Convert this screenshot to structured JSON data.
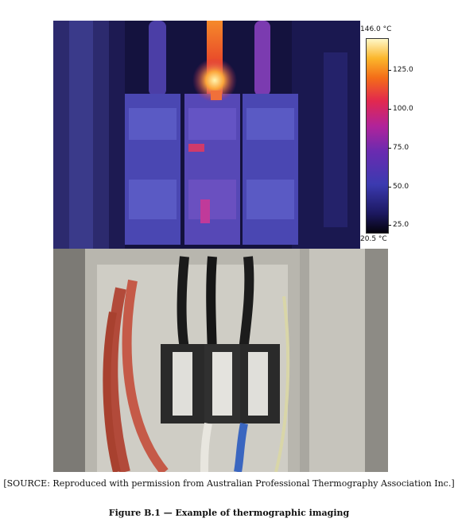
{
  "scale": {
    "max_label": "146.0 °C",
    "min_label": "20.5 °C",
    "min_value": 20.5,
    "max_value": 146.0,
    "ticks": [
      "125.0",
      "100.0",
      "75.0",
      "50.0",
      "25.0"
    ]
  },
  "source_text": "[SOURCE: Reproduced with permission from Australian Professional Thermography Association Inc.]",
  "caption": "Figure B.1 — Example of thermographic imaging",
  "colors": {
    "thermal_background": "#12103a",
    "hotspot": "#f46d18",
    "photo_background": "#7d7b76"
  }
}
